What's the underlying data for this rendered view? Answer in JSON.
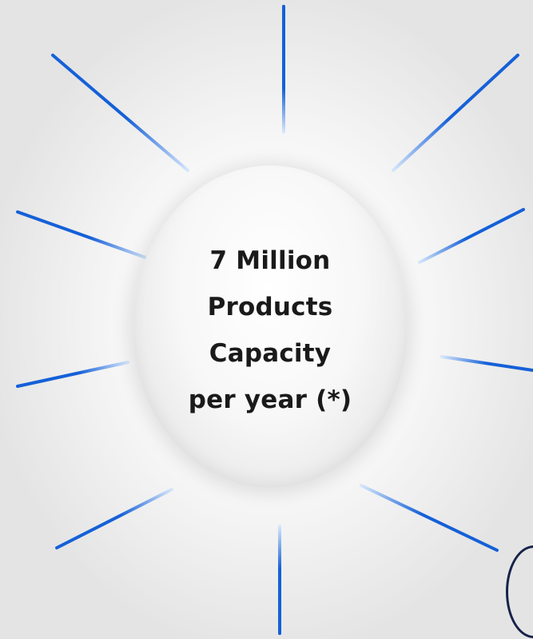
{
  "center": {
    "lines": [
      "7 Million",
      "Products",
      "Capacity",
      "per year (*)"
    ]
  },
  "ray_color": "#1560d8",
  "corner_ring_color": "#16234a"
}
